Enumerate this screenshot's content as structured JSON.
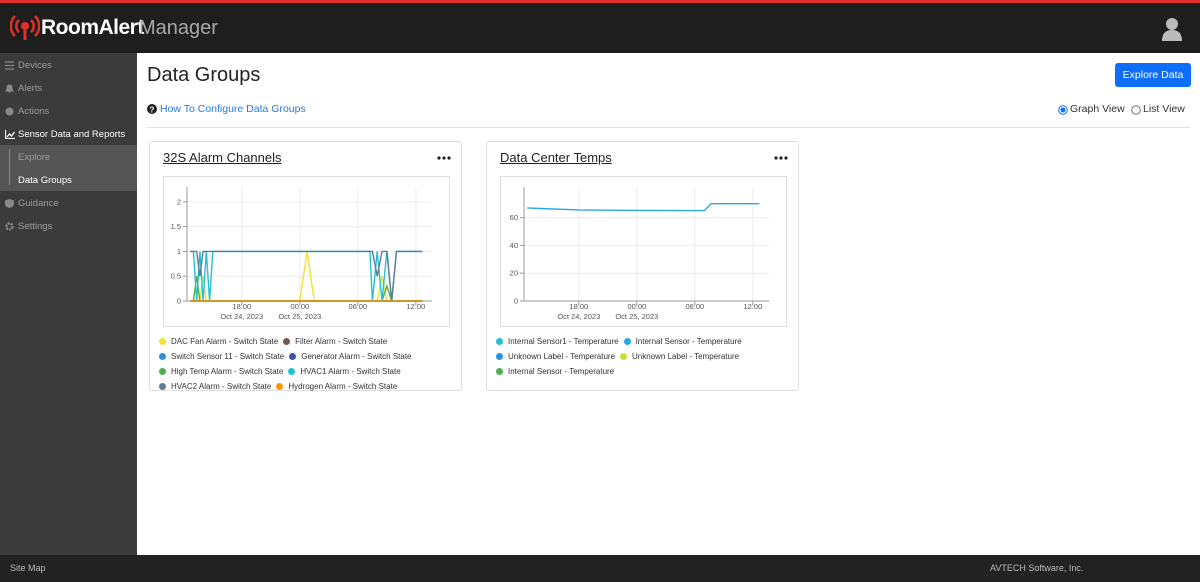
{
  "header": {
    "brand": "RoomAlert",
    "product": "Manager"
  },
  "sidebar": [
    "Devices",
    "Alerts",
    "Actions",
    "Sensor Data and Reports",
    "Explore",
    "Data Groups",
    "Guidance",
    "Settings"
  ],
  "page": {
    "title": "Data Groups",
    "button": "Explore Data",
    "help_link": "How To Configure Data Groups",
    "views": [
      "Graph View",
      "List View"
    ]
  },
  "cards": [
    {
      "chart_data": {
        "type": "line",
        "title": "32S Alarm Channels",
        "x": [
          "2023-10-24 12:40",
          "2023-10-24 13:00",
          "2023-10-24 13:20",
          "2023-10-24 13:40",
          "2023-10-24 14:00",
          "2023-10-24 14:20",
          "2023-10-24 14:40",
          "2023-10-24 15:00",
          "2023-10-24 18:00",
          "2023-10-25 00:00",
          "2023-10-25 00:45",
          "2023-10-25 01:30",
          "2023-10-25 06:00",
          "2023-10-25 07:15",
          "2023-10-25 07:30",
          "2023-10-25 08:00",
          "2023-10-25 08:30",
          "2023-10-25 09:00",
          "2023-10-25 09:30",
          "2023-10-25 10:00",
          "2023-10-25 10:30",
          "2023-10-25 12:40"
        ],
        "xlim": [
          "2023-10-24 12:20",
          "2023-10-25 13:40"
        ],
        "xticks": [
          {
            "value": "2023-10-24 18:00",
            "label": [
              "18:00",
              "Oct 24, 2023"
            ]
          },
          {
            "value": "2023-10-25 00:00",
            "label": [
              "00:00",
              "Oct 25, 2023"
            ]
          },
          {
            "value": "2023-10-25 06:00",
            "label": [
              "06:00"
            ]
          },
          {
            "value": "2023-10-25 12:00",
            "label": [
              "12:00"
            ]
          }
        ],
        "ylim": [
          0,
          2.3
        ],
        "yticks": [
          0,
          0.5,
          1,
          1.5,
          2
        ],
        "grid": true,
        "series": [
          {
            "name": "DAC Fan Alarm - Switch State",
            "color": "#f2e232",
            "values": [
              0,
              0,
              0,
              0,
              0.5,
              0,
              0,
              0,
              0,
              0,
              1,
              0,
              0,
              0,
              0,
              0,
              0.5,
              0,
              0,
              0,
              0,
              0
            ]
          },
          {
            "name": "Filter Alarm - Switch State",
            "color": "#795548",
            "values": [
              0,
              0,
              0,
              0,
              0,
              0,
              0,
              0,
              0,
              0,
              0,
              0,
              0,
              0,
              0,
              0,
              0,
              0,
              0,
              0,
              0,
              0
            ]
          },
          {
            "name": "Switch Sensor 11 - Switch State",
            "color": "#2b8fe0",
            "values": [
              0,
              0,
              0,
              0,
              0,
              0,
              0,
              0,
              0,
              0,
              0,
              0,
              0,
              0,
              0,
              0,
              0,
              0,
              0,
              0,
              0,
              0
            ]
          },
          {
            "name": "Generator Alarm - Switch State",
            "color": "#3f51b5",
            "values": [
              0,
              0,
              0,
              0,
              0,
              0,
              0,
              0,
              0,
              0,
              0,
              0,
              0,
              0,
              0,
              0,
              0,
              0,
              0,
              0,
              0,
              0
            ]
          },
          {
            "name": "High Temp Alarm - Switch State",
            "color": "#4caf50",
            "values": [
              0,
              0,
              0.5,
              0,
              0,
              0,
              0,
              0,
              0,
              0,
              0,
              0,
              0,
              0,
              0,
              0,
              0,
              0.3,
              0,
              0,
              0,
              0
            ]
          },
          {
            "name": "HVAC1 Alarm - Switch State",
            "color": "#26c0d3",
            "values": [
              1,
              1,
              0,
              1,
              0,
              1,
              0,
              1,
              1,
              1,
              1,
              1,
              1,
              1,
              0,
              1,
              0,
              1,
              0,
              1,
              1,
              1
            ]
          },
          {
            "name": "HVAC2 Alarm - Switch State",
            "color": "#5f7d8e",
            "values": [
              1,
              1,
              1,
              0.5,
              1,
              1,
              1,
              1,
              1,
              1,
              1,
              1,
              1,
              1,
              1,
              0.5,
              1,
              1,
              0,
              1,
              1,
              1
            ]
          },
          {
            "name": "Hydrogen Alarm - Switch State",
            "color": "#ff9800",
            "values": [
              0,
              0,
              0,
              0,
              0,
              0,
              0,
              0,
              0,
              0,
              0,
              0,
              0,
              0,
              0,
              0,
              0,
              0,
              0,
              0,
              0,
              0
            ]
          }
        ]
      }
    },
    {
      "chart_data": {
        "type": "line",
        "title": "Data Center Temps",
        "x": [
          "2023-10-24 12:40",
          "2023-10-24 14:00",
          "2023-10-24 18:00",
          "2023-10-25 00:00",
          "2023-10-25 06:00",
          "2023-10-25 07:00",
          "2023-10-25 07:40",
          "2023-10-25 12:40"
        ],
        "xlim": [
          "2023-10-24 12:20",
          "2023-10-25 13:40"
        ],
        "xticks": [
          {
            "value": "2023-10-24 18:00",
            "label": [
              "18:00",
              "Oct 24, 2023"
            ]
          },
          {
            "value": "2023-10-25 00:00",
            "label": [
              "00:00",
              "Oct 25, 2023"
            ]
          },
          {
            "value": "2023-10-25 06:00",
            "label": [
              "06:00"
            ]
          },
          {
            "value": "2023-10-25 12:00",
            "label": [
              "12:00"
            ]
          }
        ],
        "ylim": [
          0,
          82
        ],
        "yticks": [
          0,
          20,
          40,
          60
        ],
        "grid": true,
        "series": [
          {
            "name": "Internal Sensor1 - Temperature",
            "color": "#26c0d3",
            "values": [
              null,
              null,
              null,
              null,
              null,
              null,
              null,
              null
            ]
          },
          {
            "name": "Internal Sensor - Temperature",
            "color": "#29a8e0",
            "values": [
              67,
              66.5,
              65.5,
              65.2,
              65,
              65,
              70,
              70
            ]
          },
          {
            "name": "Unknown Label - Temperature",
            "color": "#2b8fe0",
            "values": [
              null,
              null,
              null,
              null,
              null,
              null,
              null,
              null
            ]
          },
          {
            "name": "Unknown Label - Temperature",
            "color": "#cddc39",
            "values": [
              null,
              null,
              null,
              null,
              null,
              null,
              null,
              null
            ]
          },
          {
            "name": "Internal Sensor - Temperature",
            "color": "#4caf50",
            "values": [
              null,
              null,
              null,
              null,
              null,
              null,
              null,
              null
            ]
          }
        ]
      }
    }
  ],
  "footer": {
    "left": "Site Map",
    "right": "AVTECH Software, Inc."
  }
}
